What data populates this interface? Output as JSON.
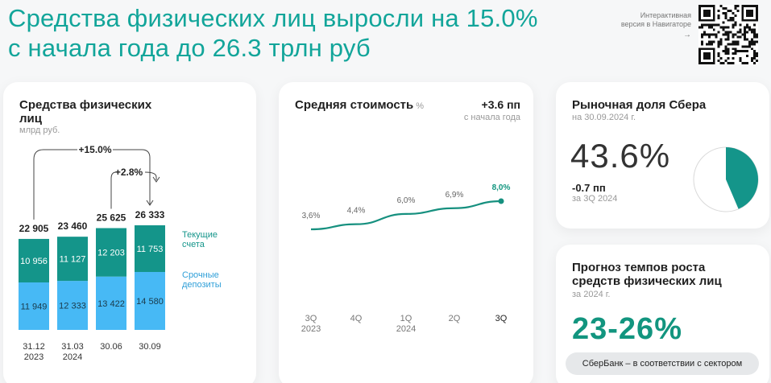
{
  "header": {
    "line1": "Средства физических лиц выросли на 15.0%",
    "line2": "с начала года до 26.3 трлн руб",
    "nav_line1": "Интерактивная",
    "nav_line2": "версия в Навигаторе",
    "nav_arrow": "→"
  },
  "colors": {
    "accent": "#12a59a",
    "current_accounts": "#14958a",
    "term_deposits": "#47b9f5",
    "sber_share": "#14958a",
    "line": "#16907f"
  },
  "deposits": {
    "title": "Средства физических лиц",
    "unit": "млрд руб.",
    "growth_ytd": "+15.0%",
    "growth_qoq": "+2.8%",
    "legend_current": "Текущие счета",
    "legend_term": "Срочные депозиты"
  },
  "cost": {
    "title": "Средняя стоимость",
    "title_unit": "%",
    "delta": "+3.6 пп",
    "delta_sub": "с начала года"
  },
  "share": {
    "title": "Рыночная доля Сбера",
    "date": "на 30.09.2024 г.",
    "value": "43.6%",
    "delta": "-0.7 пп",
    "delta_sub": "за 3Q 2024",
    "share_fraction": 0.436
  },
  "forecast": {
    "title": "Прогноз темпов роста средств физических лиц",
    "period": "за 2024 г.",
    "value": "23-26%",
    "badge": "СберБанк – в соответствии с сектором"
  },
  "chart_data": [
    {
      "type": "bar",
      "stacked": true,
      "categories": [
        [
          "31.12",
          "2023"
        ],
        [
          "31.03",
          "2024"
        ],
        [
          "30.06",
          ""
        ],
        [
          "30.09",
          ""
        ]
      ],
      "totals": [
        "22 905",
        "23 460",
        "25 625",
        "26 333"
      ],
      "series": [
        {
          "name": "Срочные депозиты",
          "values": [
            11949,
            12333,
            13422,
            14580
          ],
          "labels": [
            "11 949",
            "12 333",
            "13 422",
            "14 580"
          ]
        },
        {
          "name": "Текущие счета",
          "values": [
            10956,
            11127,
            12203,
            11753
          ],
          "labels": [
            "10 956",
            "11 127",
            "12 203",
            "11 753"
          ]
        }
      ],
      "ylim": [
        0,
        26333
      ]
    },
    {
      "type": "line",
      "x": [
        [
          "3Q",
          "2023"
        ],
        [
          "4Q",
          ""
        ],
        [
          "1Q",
          "2024"
        ],
        [
          "2Q",
          ""
        ],
        [
          "3Q",
          ""
        ]
      ],
      "values": [
        3.6,
        4.4,
        6.0,
        6.9,
        8.0
      ],
      "labels": [
        "3,6%",
        "4,4%",
        "6,0%",
        "6,9%",
        "8,0%"
      ],
      "ylim": [
        0,
        8.0
      ]
    }
  ]
}
